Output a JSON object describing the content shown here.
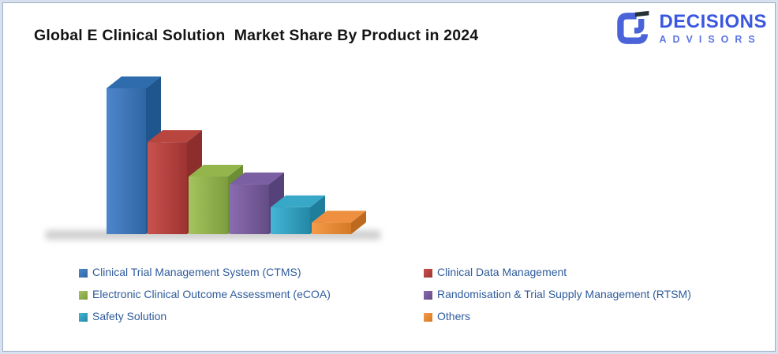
{
  "page": {
    "title": "Global E Clinical Solution  Market Share By Product in 2024"
  },
  "logo": {
    "line1": "DECISIONS",
    "line2": "ADVISORS",
    "brand_blue": "#3A57DF",
    "mark_blue": "#4A63D8",
    "mark_dark": "#263238"
  },
  "chart_data": {
    "type": "bar",
    "projection": "3d",
    "title": "Global E Clinical Solution Market Share By Product in 2024",
    "xlabel": "",
    "ylabel": "",
    "axes_visible": false,
    "grid": false,
    "data_labels_visible": false,
    "values_are_estimates": true,
    "legend_position": "bottom, two columns",
    "categories": [
      "Clinical Trial Management System (CTMS)",
      "Clinical Data Management",
      "Electronic Clinical Outcome Assessment (eCOA)",
      "Randomisation & Trial Supply Management (RTSM)",
      "Safety Solution",
      "Others"
    ],
    "values": [
      38,
      24,
      15,
      13,
      7,
      3
    ],
    "series": [
      {
        "label": "Clinical Trial Management System (CTMS)",
        "value": 38,
        "color": {
          "face_light": "#4E86CC",
          "face_dark": "#2E66A4",
          "top": "#2F6CAD",
          "side": "#1F568D"
        }
      },
      {
        "label": "Clinical Data Management",
        "value": 24,
        "color": {
          "face_light": "#C9524E",
          "face_dark": "#9E3331",
          "top": "#B8463E",
          "side": "#8C2F2C"
        }
      },
      {
        "label": "Electronic Clinical Outcome Assessment (eCOA)",
        "value": 15,
        "color": {
          "face_light": "#A5C45F",
          "face_dark": "#7C9C3F",
          "top": "#93B54C",
          "side": "#6C8E35"
        }
      },
      {
        "label": "Randomisation & Trial Supply Management (RTSM)",
        "value": 13,
        "color": {
          "face_light": "#8A6CB0",
          "face_dark": "#644C86",
          "top": "#7A5FA3",
          "side": "#55427A"
        }
      },
      {
        "label": "Safety Solution",
        "value": 7,
        "color": {
          "face_light": "#45B5D6",
          "face_dark": "#2388A6",
          "top": "#38A8C8",
          "side": "#1F7E9B"
        }
      },
      {
        "label": "Others",
        "value": 3,
        "color": {
          "face_light": "#F59B49",
          "face_dark": "#D47A26",
          "top": "#EF9040",
          "side": "#BD6A1E"
        }
      }
    ]
  }
}
